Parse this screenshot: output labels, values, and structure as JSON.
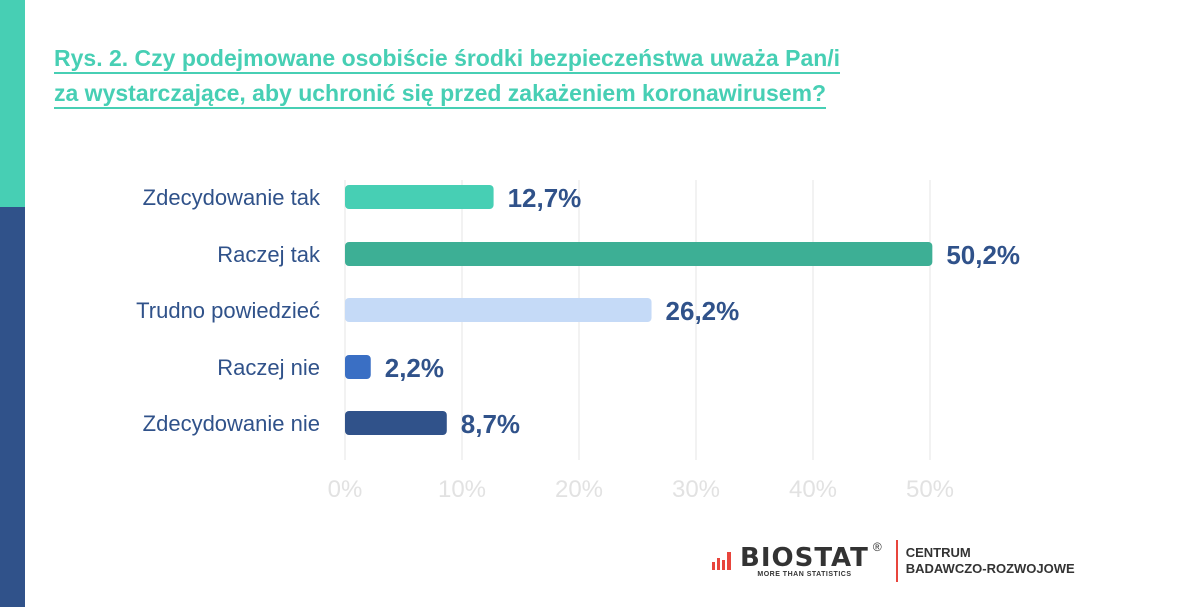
{
  "title": {
    "line1": "Rys. 2. Czy podejmowane osobiście środki bezpieczeństwa uważa Pan/i",
    "line2": "za wystarczające, aby uchronić się przed zakażeniem koronawirusem?"
  },
  "chart_data": {
    "type": "bar",
    "orientation": "horizontal",
    "categories": [
      "Zdecydowanie tak",
      "Raczej tak",
      "Trudno powiedzieć",
      "Raczej nie",
      "Zdecydowanie nie"
    ],
    "values": [
      12.7,
      50.2,
      26.2,
      2.2,
      8.7
    ],
    "data_labels": [
      "12,7%",
      "50,2%",
      "26,2%",
      "2,2%",
      "8,7%"
    ],
    "colors": [
      "#47cfb4",
      "#3daf95",
      "#c5daf7",
      "#3a6fc4",
      "#30528a"
    ],
    "xlim": [
      0,
      50
    ],
    "xticks": [
      "0%",
      "10%",
      "20%",
      "30%",
      "40%",
      "50%"
    ],
    "grid": true
  },
  "logo": {
    "brand": "BIOSTAT",
    "reg": "®",
    "tagline": "MORE THAN STATISTICS",
    "unit_line1": "CENTRUM",
    "unit_line2": "BADAWCZO-ROZWOJOWE"
  }
}
